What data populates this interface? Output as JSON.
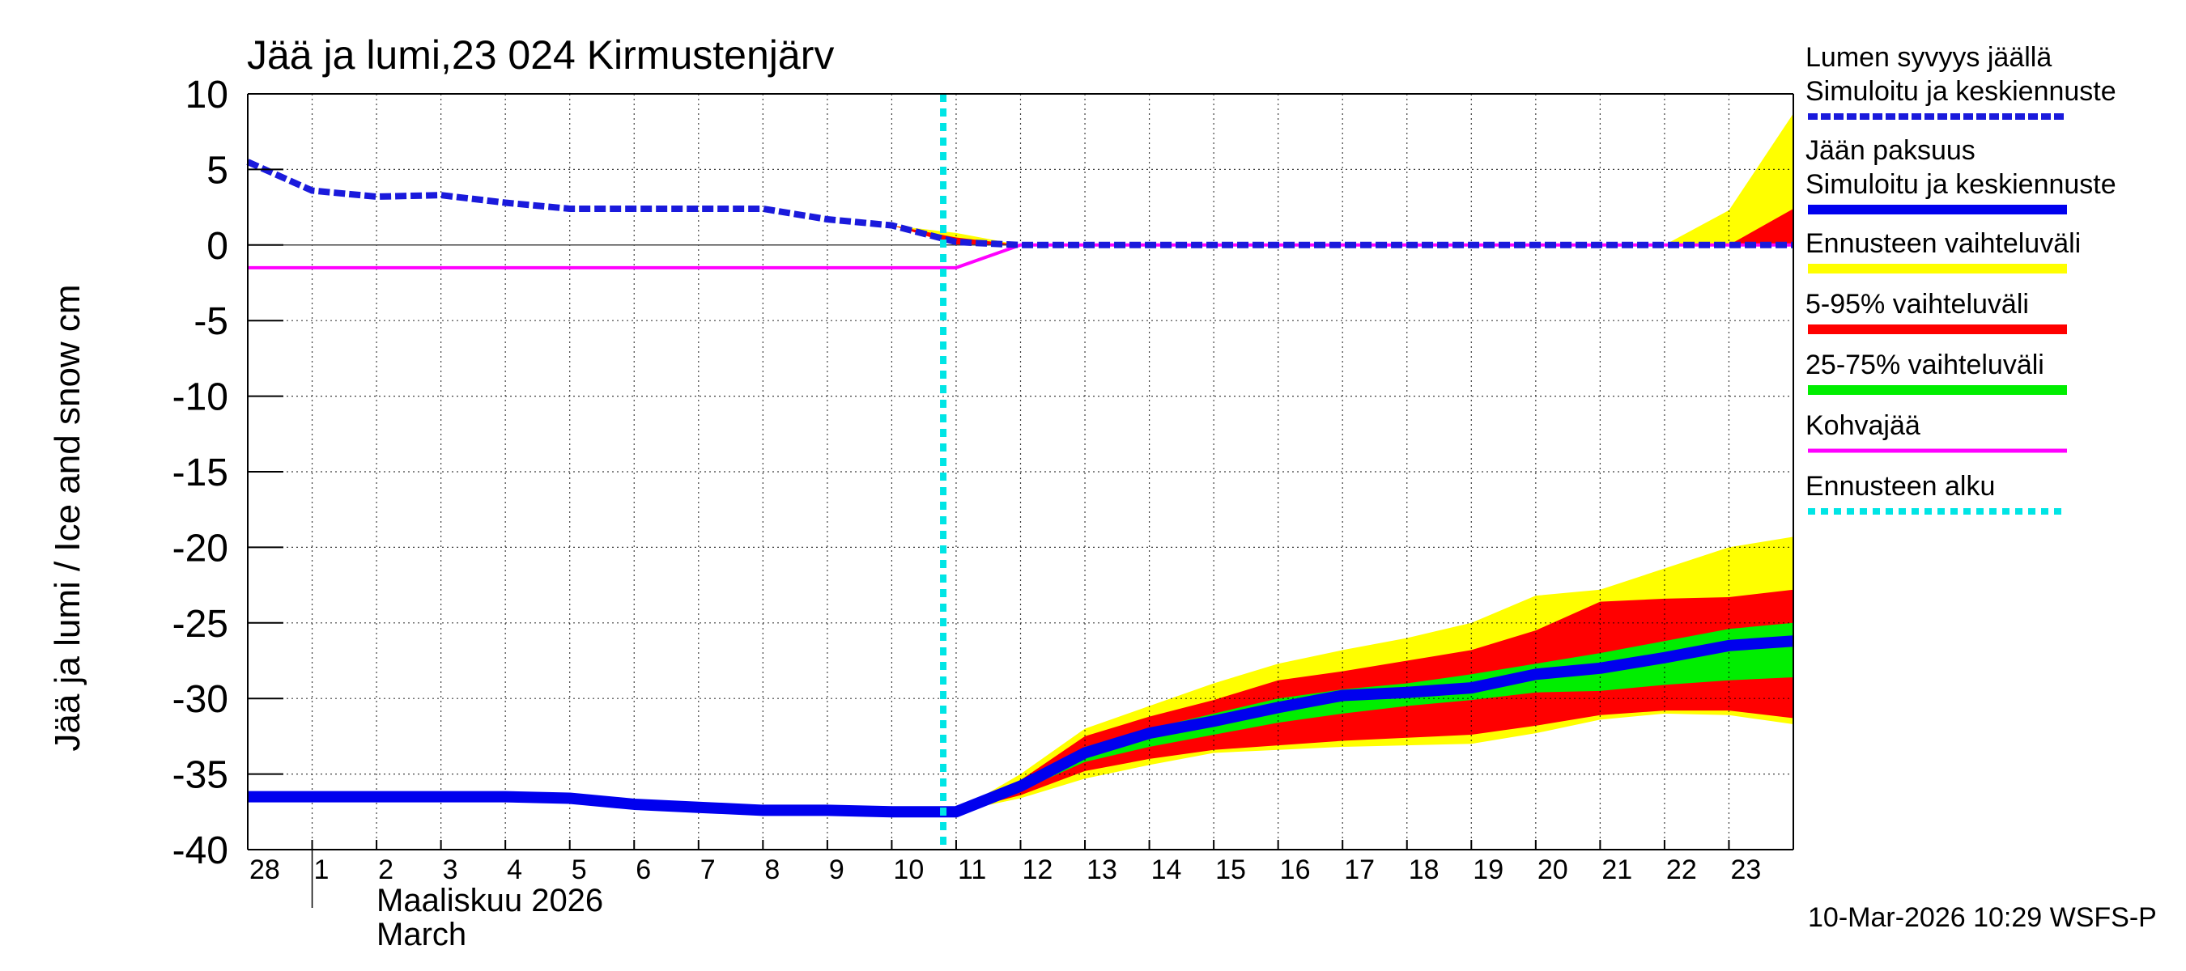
{
  "chart_data": {
    "type": "line",
    "title": "Jää ja lumi,23 024 Kirmustenjärv",
    "ylabel": "Jää ja lumi / Ice and snow    cm",
    "xlabel_fi": "Maaliskuu 2026",
    "xlabel_en": "March",
    "ylim": [
      -40,
      10
    ],
    "yticks": [
      10,
      5,
      0,
      -5,
      -10,
      -15,
      -20,
      -25,
      -30,
      -35,
      -40
    ],
    "x_days": [
      28,
      1,
      2,
      3,
      4,
      5,
      6,
      7,
      8,
      9,
      10,
      11,
      12,
      13,
      14,
      15,
      16,
      17,
      18,
      19,
      20,
      21,
      22,
      23
    ],
    "forecast_start_index": 10.8,
    "footer": "10-Mar-2026 10:29 WSFS-P",
    "legend": [
      {
        "line1": "Lumen syvyys jäällä",
        "line2": "Simuloitu ja keskiennuste",
        "color": "#1a1adc",
        "style": "dashed"
      },
      {
        "line1": "Jään paksuus",
        "line2": "Simuloitu ja keskiennuste",
        "color": "#0000ee",
        "style": "solid"
      },
      {
        "line1": "Ennusteen vaihteluväli",
        "line2": "",
        "color": "#ffff00",
        "style": "solid"
      },
      {
        "line1": "5-95% vaihteluväli",
        "line2": "",
        "color": "#ff0000",
        "style": "solid"
      },
      {
        "line1": "25-75% vaihteluväli",
        "line2": "",
        "color": "#00ee00",
        "style": "solid"
      },
      {
        "line1": "Kohvajää",
        "line2": "",
        "color": "#ff00ff",
        "style": "solid"
      },
      {
        "line1": "Ennusteen alku",
        "line2": "",
        "color": "#00e5e5",
        "style": "dotted"
      }
    ],
    "series": {
      "snow_depth": {
        "x": [
          0,
          1,
          2,
          3,
          4,
          5,
          6,
          7,
          8,
          9,
          10,
          11,
          12,
          13,
          14,
          15,
          16,
          17,
          18,
          19,
          20,
          21,
          22,
          23,
          24
        ],
        "y": [
          5.5,
          3.6,
          3.2,
          3.3,
          2.8,
          2.4,
          2.4,
          2.4,
          2.4,
          1.7,
          1.3,
          0.2,
          0,
          0,
          0,
          0,
          0,
          0,
          0,
          0,
          0,
          0,
          0,
          0,
          0
        ]
      },
      "snow_range_full": {
        "x": [
          10,
          11,
          12,
          13,
          14,
          15,
          16,
          17,
          18,
          19,
          20,
          21,
          22,
          23,
          24
        ],
        "upper": [
          1.3,
          0.8,
          0,
          0,
          0,
          0,
          0,
          0,
          0,
          0,
          0,
          0,
          0,
          2.3,
          8.7
        ],
        "lower": [
          1.3,
          0,
          0,
          0,
          0,
          0,
          0,
          0,
          0,
          0,
          0,
          0,
          0,
          0,
          0
        ]
      },
      "snow_range_5_95": {
        "x": [
          10,
          11,
          12,
          13,
          14,
          15,
          16,
          17,
          18,
          19,
          20,
          21,
          22,
          23,
          24
        ],
        "upper": [
          1.3,
          0.5,
          0,
          0,
          0,
          0,
          0,
          0,
          0,
          0,
          0,
          0,
          0,
          0,
          2.4
        ],
        "lower": [
          1.3,
          0,
          0,
          0,
          0,
          0,
          0,
          0,
          0,
          0,
          0,
          0,
          0,
          0,
          0
        ]
      },
      "slush_ice": {
        "x": [
          0,
          11,
          12,
          24
        ],
        "y": [
          -1.5,
          -1.5,
          0,
          0
        ]
      },
      "ice_thickness": {
        "x": [
          0,
          1,
          2,
          3,
          4,
          5,
          6,
          7,
          8,
          9,
          10,
          11,
          12,
          13,
          14,
          15,
          16,
          17,
          18,
          19,
          20,
          21,
          22,
          23,
          24
        ],
        "y": [
          -36.5,
          -36.5,
          -36.5,
          -36.5,
          -36.5,
          -36.6,
          -37.0,
          -37.2,
          -37.4,
          -37.4,
          -37.5,
          -37.5,
          -35.8,
          -33.6,
          -32.3,
          -31.5,
          -30.6,
          -29.8,
          -29.6,
          -29.3,
          -28.4,
          -28.0,
          -27.3,
          -26.5,
          -26.2
        ]
      },
      "ice_range_full": {
        "x": [
          11,
          12,
          13,
          14,
          15,
          16,
          17,
          18,
          19,
          20,
          21,
          22,
          23,
          24
        ],
        "upper": [
          -37.5,
          -35.0,
          -32.0,
          -30.5,
          -29.0,
          -27.7,
          -26.8,
          -26.0,
          -25.0,
          -23.2,
          -22.8,
          -21.4,
          -20.0,
          -19.3
        ],
        "lower": [
          -37.5,
          -36.6,
          -35.3,
          -34.4,
          -33.6,
          -33.4,
          -33.2,
          -33.1,
          -33.0,
          -32.3,
          -31.4,
          -31.0,
          -31.1,
          -31.7
        ]
      },
      "ice_range_5_95": {
        "x": [
          11,
          12,
          13,
          14,
          15,
          16,
          17,
          18,
          19,
          20,
          21,
          22,
          23,
          24
        ],
        "upper": [
          -37.5,
          -35.4,
          -32.5,
          -31.2,
          -30.1,
          -28.8,
          -28.2,
          -27.5,
          -26.8,
          -25.5,
          -23.6,
          -23.4,
          -23.3,
          -22.8
        ],
        "lower": [
          -37.5,
          -36.4,
          -34.8,
          -34.0,
          -33.4,
          -33.1,
          -32.8,
          -32.6,
          -32.4,
          -31.8,
          -31.1,
          -30.8,
          -30.8,
          -31.3
        ]
      },
      "ice_range_25_75": {
        "x": [
          11,
          12,
          13,
          14,
          15,
          16,
          17,
          18,
          19,
          20,
          21,
          22,
          23,
          24
        ],
        "upper": [
          -37.5,
          -35.6,
          -33.2,
          -32.0,
          -31.0,
          -30.0,
          -29.4,
          -29.0,
          -28.4,
          -27.7,
          -27.0,
          -26.2,
          -25.4,
          -25.0
        ],
        "lower": [
          -37.5,
          -36.1,
          -34.2,
          -33.2,
          -32.4,
          -31.6,
          -31.0,
          -30.5,
          -30.1,
          -29.6,
          -29.5,
          -29.1,
          -28.8,
          -28.6
        ]
      }
    }
  }
}
